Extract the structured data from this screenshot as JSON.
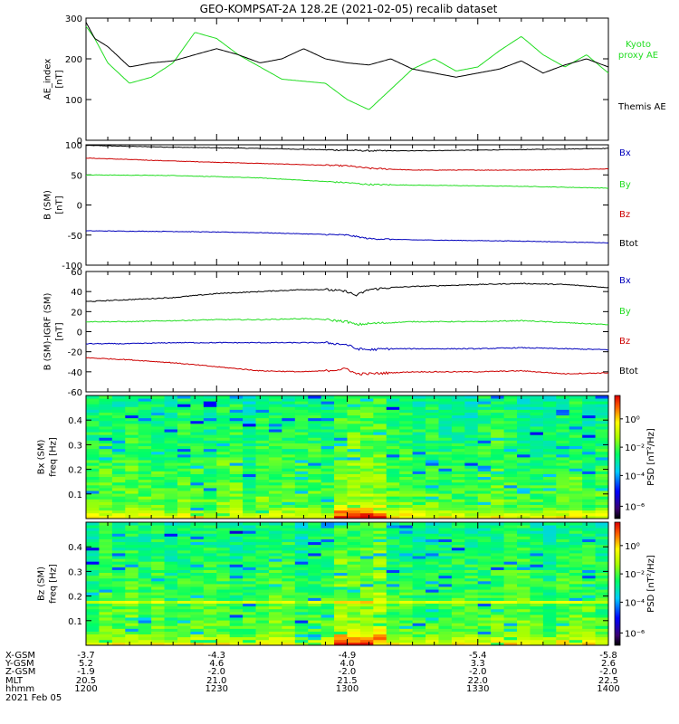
{
  "title": "GEO-KOMPSAT-2A 128.2E (2021-02-05) recalib dataset",
  "colors": {
    "black": "#000000",
    "green": "#22dd22",
    "red": "#cc0000",
    "blue": "#0000bb"
  },
  "chart_data": [
    {
      "type": "line",
      "ylabel": "AE_index [nT]",
      "ylim": [
        0,
        300
      ],
      "yticks": [
        0,
        100,
        200,
        300
      ],
      "legend_placement": "right",
      "x": [
        0,
        2,
        5,
        10,
        15,
        20,
        25,
        30,
        35,
        40,
        45,
        50,
        55,
        60,
        65,
        70,
        75,
        80,
        85,
        90,
        95,
        100,
        105,
        110,
        115,
        120
      ],
      "series": [
        {
          "name": "Kyoto proxy AE",
          "color": "#22dd22",
          "values": [
            280,
            250,
            190,
            140,
            155,
            190,
            265,
            250,
            210,
            180,
            150,
            145,
            140,
            100,
            75,
            125,
            175,
            200,
            170,
            180,
            220,
            255,
            210,
            180,
            210,
            165
          ]
        },
        {
          "name": "Themis AE",
          "color": "#000000",
          "values": [
            290,
            250,
            230,
            180,
            190,
            195,
            210,
            225,
            210,
            190,
            200,
            225,
            200,
            190,
            185,
            200,
            175,
            165,
            155,
            165,
            175,
            195,
            165,
            185,
            200,
            180
          ]
        }
      ]
    },
    {
      "type": "line",
      "ylabel": "B (SM) [nT]",
      "ylim": [
        -100,
        100
      ],
      "yticks": [
        -100,
        -50,
        0,
        50,
        100
      ],
      "legend_placement": "right",
      "legend": [
        "Bx",
        "By",
        "Bz",
        "Btot"
      ],
      "legend_colors": [
        "#0000bb",
        "#22dd22",
        "#cc0000",
        "#000000"
      ],
      "x": [
        0,
        20,
        40,
        60,
        65,
        75,
        100,
        120
      ],
      "series": [
        {
          "name": "Btot",
          "color": "#000000",
          "values": [
            99,
            96,
            94,
            91,
            90,
            90,
            92,
            94
          ]
        },
        {
          "name": "Bz",
          "color": "#cc0000",
          "values": [
            78,
            73,
            69,
            65,
            61,
            58,
            58,
            60
          ]
        },
        {
          "name": "By",
          "color": "#22dd22",
          "values": [
            50,
            49,
            45,
            37,
            34,
            33,
            31,
            28
          ]
        },
        {
          "name": "Bx",
          "color": "#0000bb",
          "values": [
            -43,
            -44,
            -46,
            -50,
            -56,
            -58,
            -60,
            -63
          ]
        }
      ]
    },
    {
      "type": "line",
      "ylabel": "B (SM)-IGRF (SM) [nT]",
      "ylim": [
        -60,
        60
      ],
      "yticks": [
        -60,
        -40,
        -20,
        0,
        20,
        40,
        60
      ],
      "legend_placement": "right",
      "legend": [
        "Bx",
        "By",
        "Bz",
        "Btot"
      ],
      "legend_colors": [
        "#0000bb",
        "#22dd22",
        "#cc0000",
        "#000000"
      ],
      "x": [
        0,
        10,
        20,
        30,
        40,
        50,
        55,
        60,
        62,
        65,
        70,
        75,
        90,
        100,
        110,
        120
      ],
      "series": [
        {
          "name": "Btot",
          "color": "#000000",
          "values": [
            30,
            32,
            34,
            38,
            40,
            42,
            42,
            40,
            36,
            42,
            44,
            45,
            47,
            48,
            47,
            44
          ]
        },
        {
          "name": "By",
          "color": "#22dd22",
          "values": [
            10,
            10,
            11,
            12,
            12,
            13,
            12,
            10,
            7,
            8,
            9,
            10,
            10,
            11,
            9,
            7
          ]
        },
        {
          "name": "Bx",
          "color": "#0000bb",
          "values": [
            -12,
            -12,
            -11,
            -11,
            -11,
            -11,
            -11,
            -13,
            -17,
            -18,
            -17,
            -17,
            -17,
            -16,
            -17,
            -18
          ]
        },
        {
          "name": "Bz",
          "color": "#cc0000",
          "values": [
            -26,
            -28,
            -31,
            -35,
            -39,
            -40,
            -39,
            -37,
            -42,
            -42,
            -41,
            -40,
            -40,
            -39,
            -42,
            -41
          ]
        }
      ]
    },
    {
      "type": "heatmap",
      "ylabel": "Bx (SM) freq [Hz]",
      "ylim": [
        0,
        0.5
      ],
      "yticks": [
        0.1,
        0.2,
        0.3,
        0.4
      ],
      "colorbar_label": "PSD [nT²/Hz]",
      "colorbar_ticks": [
        "10⁰",
        "10⁻²",
        "10⁻⁴",
        "10⁻⁶"
      ]
    },
    {
      "type": "heatmap",
      "ylabel": "Bz (SM) freq [Hz]",
      "ylim": [
        0,
        0.5
      ],
      "yticks": [
        0.1,
        0.2,
        0.3,
        0.4
      ],
      "colorbar_label": "PSD [nT²/Hz]",
      "colorbar_ticks": [
        "10⁰",
        "10⁻²",
        "10⁻⁴",
        "10⁻⁶"
      ]
    }
  ],
  "orbit_table": {
    "row_labels": [
      "X-GSM",
      "Y-GSM",
      "Z-GSM",
      "MLT",
      "hhmm",
      "2021 Feb 05"
    ],
    "columns": [
      [
        "-3.7",
        "5.2",
        "-1.9",
        "20.5",
        "1200"
      ],
      [
        "-4.3",
        "4.6",
        "-2.0",
        "21.0",
        "1230"
      ],
      [
        "-4.9",
        "4.0",
        "-2.0",
        "21.5",
        "1300"
      ],
      [
        "-5.4",
        "3.3",
        "-2.0",
        "22.0",
        "1330"
      ],
      [
        "-5.8",
        "2.6",
        "-2.0",
        "22.5",
        "1400"
      ]
    ]
  }
}
